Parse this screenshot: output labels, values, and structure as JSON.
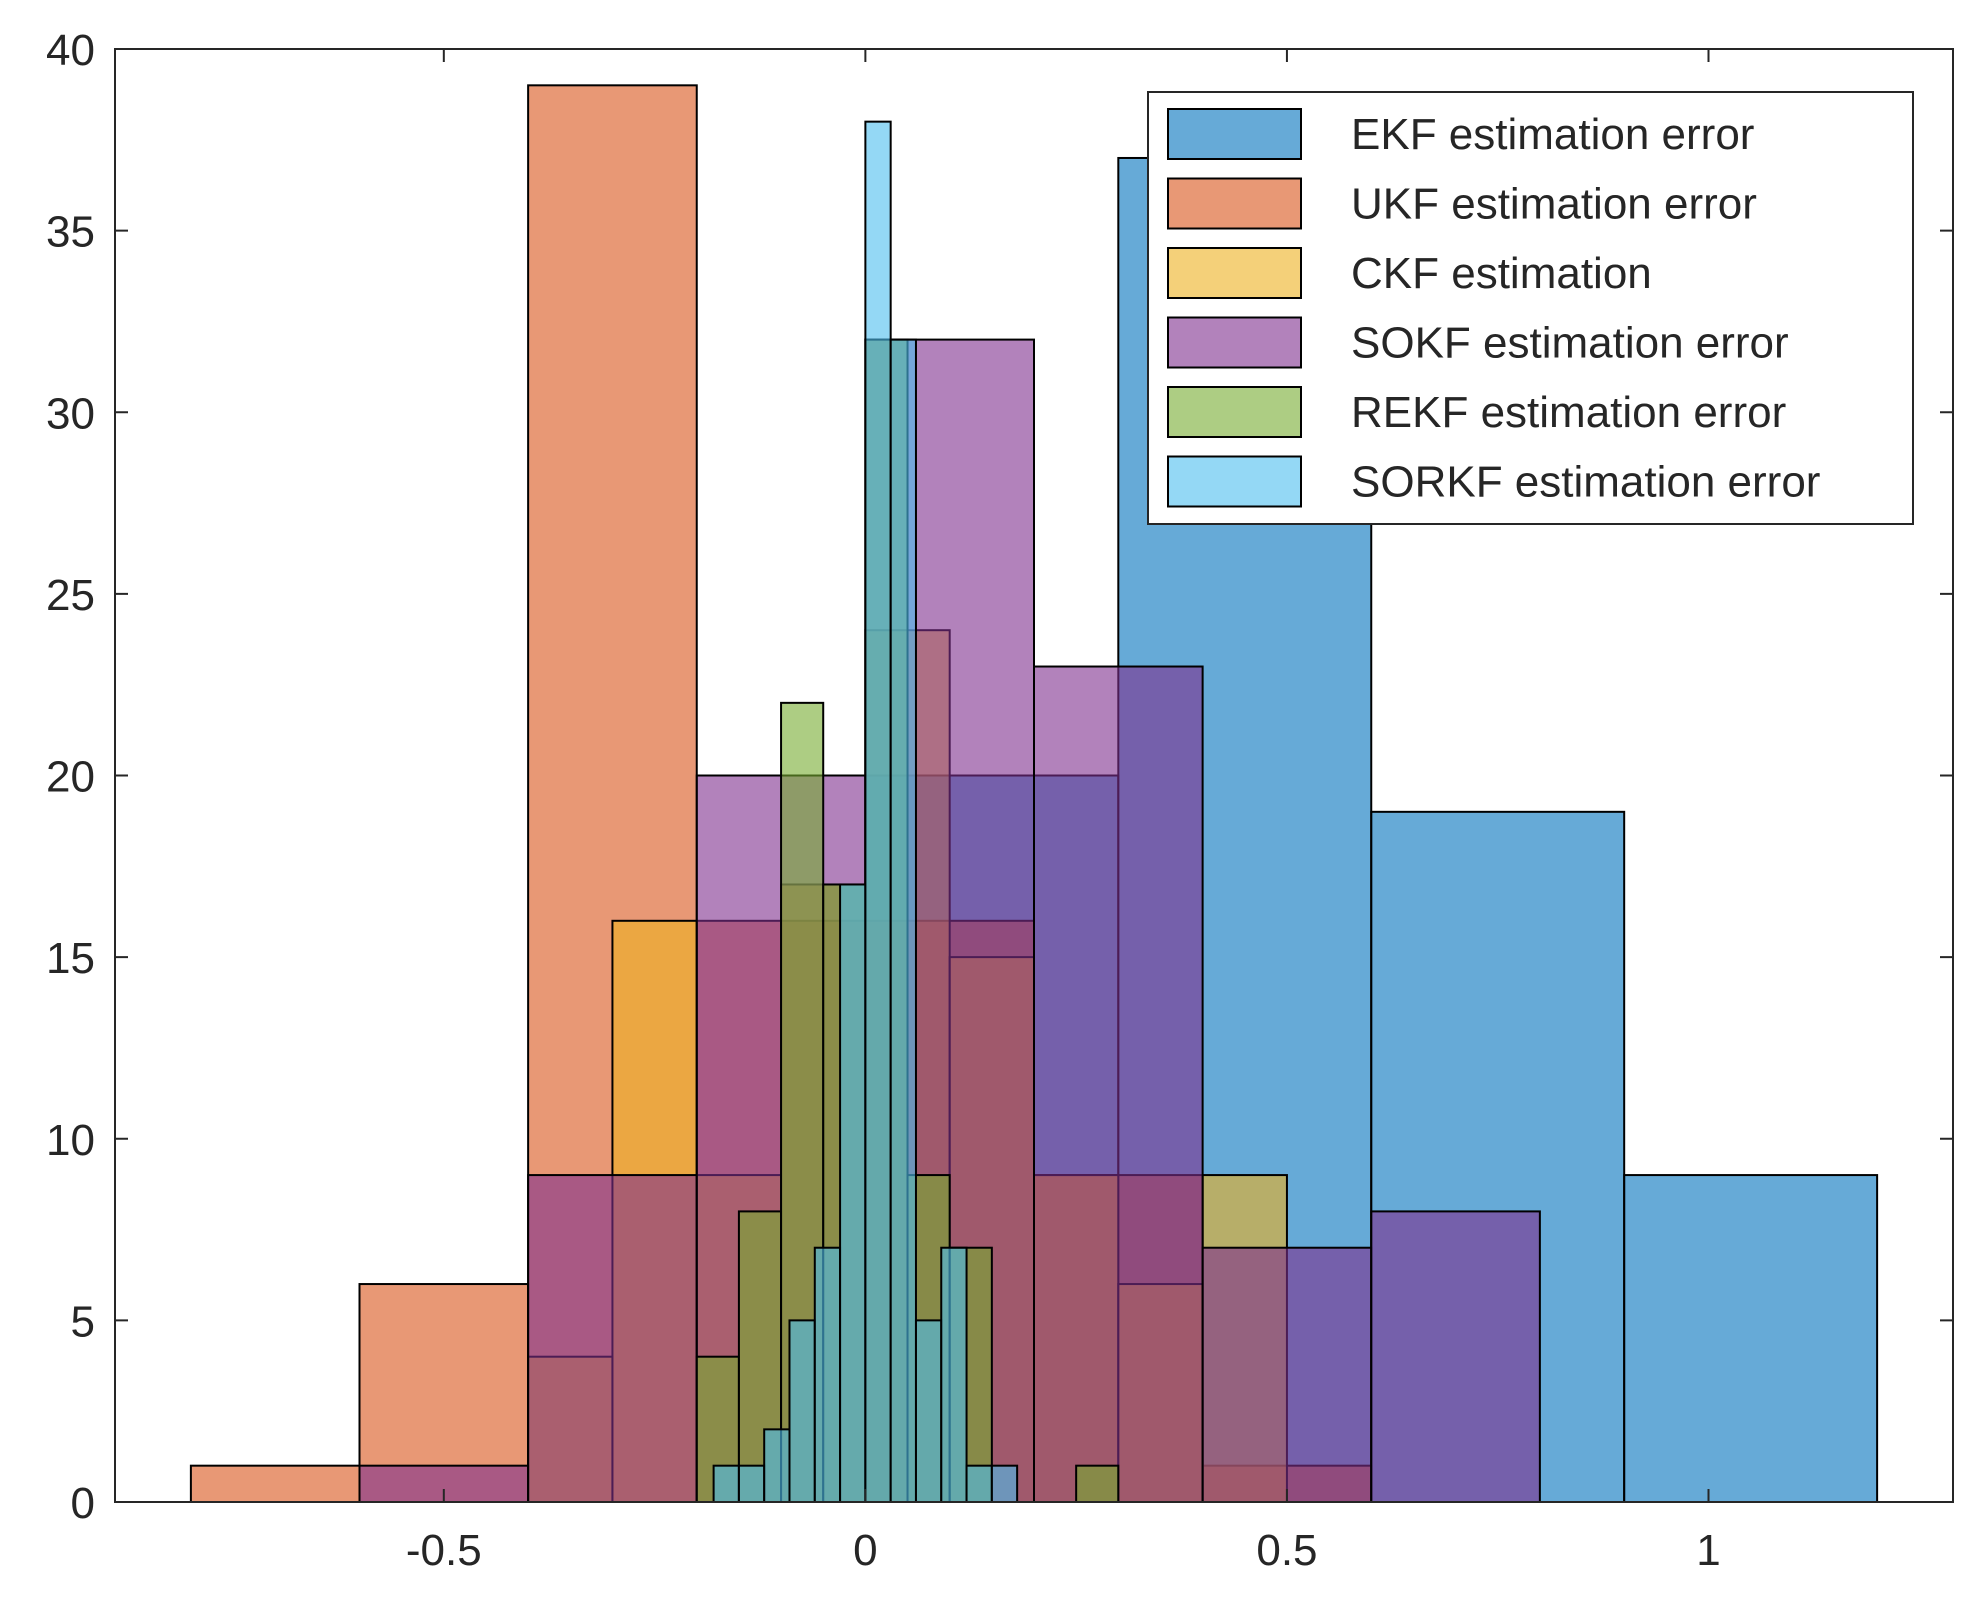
{
  "chart_data": {
    "type": "bar",
    "title": "",
    "xlabel": "",
    "ylabel": "",
    "xlim": [
      -0.89,
      1.29
    ],
    "ylim": [
      0,
      40
    ],
    "xticks": [
      -0.5,
      0,
      0.5,
      1
    ],
    "xtick_labels": [
      "-0.5",
      "0",
      "0.5",
      "1"
    ],
    "yticks": [
      0,
      5,
      10,
      15,
      20,
      25,
      30,
      35,
      40
    ],
    "ytick_labels": [
      "0",
      "5",
      "10",
      "15",
      "20",
      "25",
      "30",
      "35",
      "40"
    ],
    "grid": false,
    "legend_position": "top-right",
    "bar_opacity": 0.6,
    "series": [
      {
        "name": "EKF estimation error",
        "color": "#0072BD",
        "bin_edges": [
          -0.3,
          0,
          0.3,
          0.6,
          0.9,
          1.2
        ],
        "values": [
          0,
          20,
          37,
          19,
          9
        ]
      },
      {
        "name": "UKF estimation error",
        "color": "#D95319",
        "bin_edges": [
          -0.8,
          -0.6,
          -0.4,
          -0.2,
          0,
          0.2,
          0.4,
          0.6
        ],
        "values": [
          1,
          6,
          39,
          16,
          16,
          9,
          1
        ]
      },
      {
        "name": "CKF estimation",
        "color": "#EDB120",
        "bin_edges": [
          -0.4,
          -0.3,
          -0.2,
          -0.1,
          0,
          0.1,
          0.2,
          0.3,
          0.4,
          0.5,
          0.6
        ],
        "values": [
          4,
          16,
          9,
          17,
          24,
          15,
          9,
          6,
          9,
          0
        ]
      },
      {
        "name": "SOKF estimation error",
        "color": "#7E2F8E",
        "bin_edges": [
          -0.6,
          -0.4,
          -0.2,
          0,
          0.2,
          0.4,
          0.6,
          0.8
        ],
        "values": [
          1,
          9,
          20,
          32,
          23,
          7,
          8
        ]
      },
      {
        "name": "REKF estimation error",
        "color": "#77AC30",
        "bin_edges": [
          -0.2,
          -0.15,
          -0.1,
          -0.05,
          0,
          0.05,
          0.1,
          0.15,
          0.2,
          0.25,
          0.3
        ],
        "values": [
          4,
          8,
          22,
          17,
          32,
          9,
          7,
          0,
          0,
          1
        ]
      },
      {
        "name": "SORKF estimation error",
        "color": "#4DBEEE",
        "bin_edges": [
          -0.18,
          -0.15,
          -0.12,
          -0.09,
          -0.06,
          -0.03,
          0,
          0.03,
          0.06,
          0.09,
          0.12,
          0.15,
          0.18
        ],
        "values": [
          1,
          1,
          2,
          5,
          7,
          17,
          38,
          32,
          5,
          7,
          1,
          1
        ]
      }
    ]
  }
}
